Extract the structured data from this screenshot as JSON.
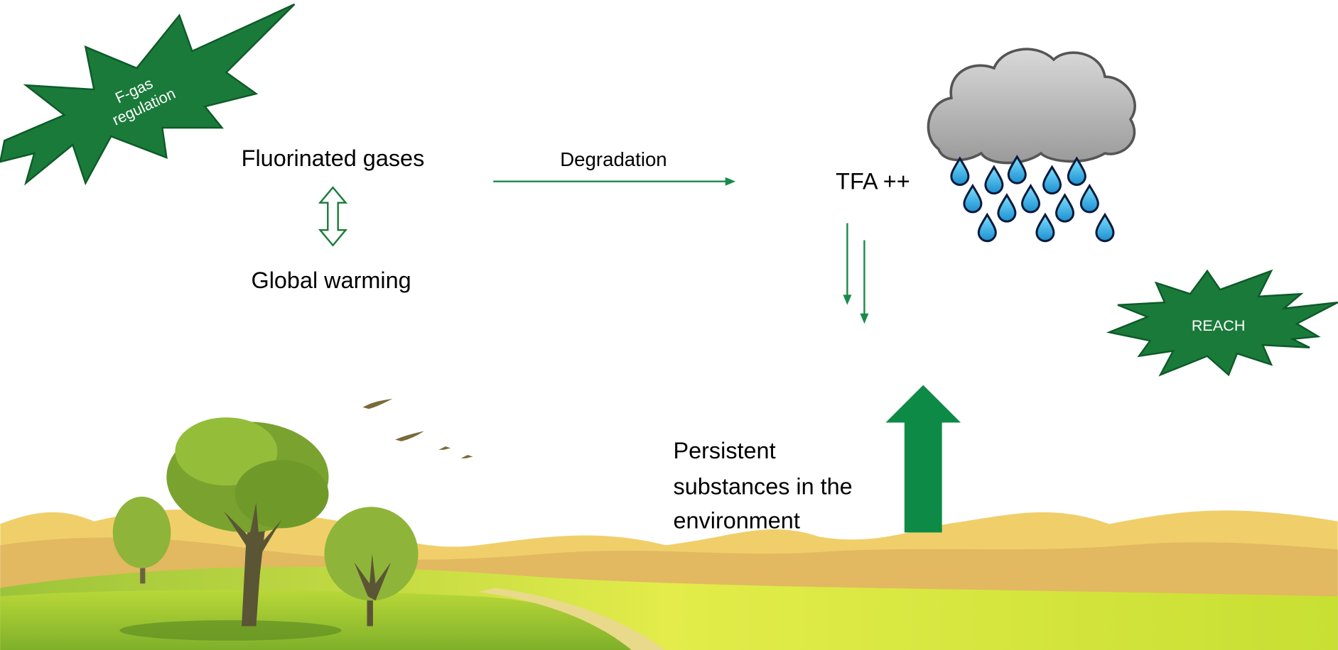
{
  "labels": {
    "f_gas_regulation": [
      "F-gas",
      "regulation"
    ],
    "fluorinated_gases": "Fluorinated gases",
    "global_warming": "Global warming",
    "degradation": "Degradation",
    "tfa": "TFA ++",
    "reach": "REACH",
    "persistent_substances": [
      "Persistent",
      "substances in the",
      "environment"
    ]
  }
}
